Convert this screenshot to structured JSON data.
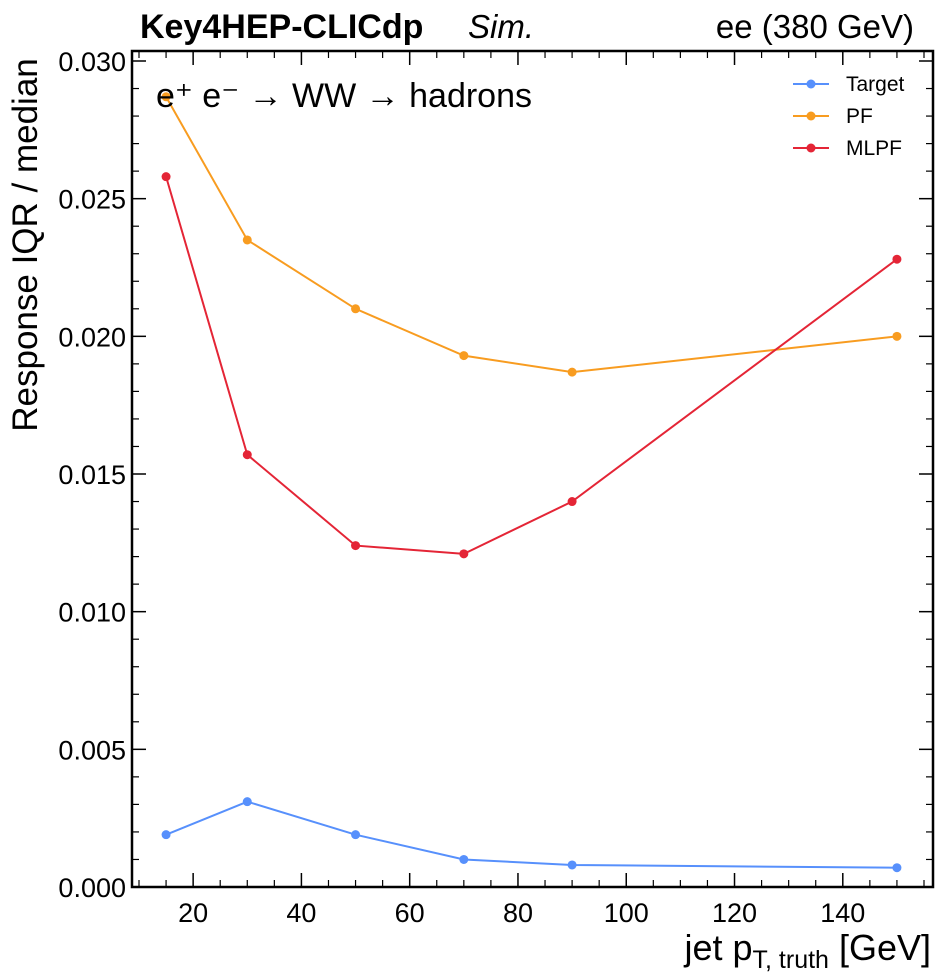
{
  "header": {
    "experiment": "Key4HEP-CLICdp",
    "status": "Sim.",
    "energy": "ee (380 GeV)"
  },
  "chart_data": {
    "type": "line",
    "process_label": "e⁺ e⁻ → WW → hadrons",
    "xlabel": "jet p_T,truth [GeV]",
    "ylabel": "Response IQR / median",
    "xlim": [
      8,
      157
    ],
    "ylim": [
      0.0,
      0.0302
    ],
    "x_ticks": [
      20,
      40,
      60,
      80,
      100,
      120,
      140
    ],
    "y_ticks": [
      0.0,
      0.005,
      0.01,
      0.015,
      0.02,
      0.025,
      0.03
    ],
    "y_tick_labels": [
      "0.000",
      "0.005",
      "0.010",
      "0.015",
      "0.020",
      "0.025",
      "0.030"
    ],
    "x": [
      15,
      30,
      50,
      70,
      90,
      150
    ],
    "series": [
      {
        "name": "Target",
        "color": "#5790fc",
        "values": [
          0.0019,
          0.0031,
          0.0019,
          0.001,
          0.0008,
          0.0007
        ]
      },
      {
        "name": "PF",
        "color": "#f89c20",
        "values": [
          0.0287,
          0.0235,
          0.021,
          0.0193,
          0.0187,
          0.02
        ]
      },
      {
        "name": "MLPF",
        "color": "#e42536",
        "values": [
          0.0258,
          0.0157,
          0.0124,
          0.0121,
          0.014,
          0.0228
        ]
      }
    ],
    "legend_position": "top-right",
    "grid": false
  }
}
